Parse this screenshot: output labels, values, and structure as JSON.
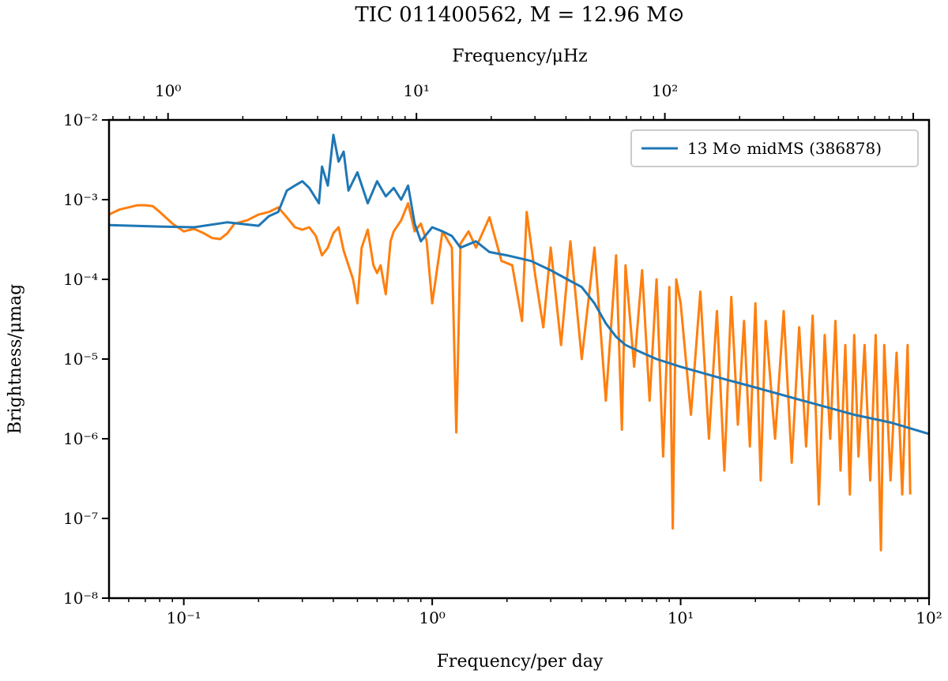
{
  "chart_data": {
    "type": "line",
    "title": "TIC 011400562, M = 12.96 M⊙",
    "xlabel": "Frequency/per day",
    "xlabel_top": "Frequency/μHz",
    "ylabel": "Brightness/μmag",
    "xscale": "log",
    "yscale": "log",
    "xlim": [
      0.05,
      100
    ],
    "ylim": [
      1e-08,
      0.01
    ],
    "top_xlim": [
      0.5787,
      1157.4
    ],
    "x_ticks": [
      {
        "value": 0.1,
        "label": "10⁻¹"
      },
      {
        "value": 1,
        "label": "10⁰"
      },
      {
        "value": 10,
        "label": "10¹"
      },
      {
        "value": 100,
        "label": "10²"
      }
    ],
    "top_x_ticks": [
      {
        "value": 1,
        "label": "10⁰"
      },
      {
        "value": 10,
        "label": "10¹"
      },
      {
        "value": 100,
        "label": "10²"
      }
    ],
    "y_ticks": [
      {
        "value": 1e-08,
        "label": "10⁻⁸"
      },
      {
        "value": 1e-07,
        "label": "10⁻⁷"
      },
      {
        "value": 1e-06,
        "label": "10⁻⁶"
      },
      {
        "value": 1e-05,
        "label": "10⁻⁵"
      },
      {
        "value": 0.0001,
        "label": "10⁻⁴"
      },
      {
        "value": 0.001,
        "label": "10⁻³"
      },
      {
        "value": 0.01,
        "label": "10⁻²"
      }
    ],
    "legend_position": "top-right",
    "series": [
      {
        "name": "13 M⊙ midMS (386878)",
        "color": "#1f77b4",
        "x": [
          0.05,
          0.08,
          0.11,
          0.15,
          0.2,
          0.22,
          0.24,
          0.26,
          0.28,
          0.3,
          0.32,
          0.35,
          0.36,
          0.38,
          0.4,
          0.42,
          0.44,
          0.46,
          0.5,
          0.55,
          0.6,
          0.65,
          0.7,
          0.75,
          0.8,
          0.85,
          0.9,
          1.0,
          1.1,
          1.2,
          1.3,
          1.5,
          1.7,
          2.0,
          2.5,
          3.0,
          3.5,
          4.0,
          4.5,
          5.0,
          5.5,
          6.0,
          7.0,
          8.0,
          10.0,
          15.0,
          20.0,
          30.0,
          50.0,
          70.0,
          100.0
        ],
        "y": [
          0.00048,
          0.00046,
          0.00045,
          0.00052,
          0.00047,
          0.00062,
          0.0007,
          0.0013,
          0.0015,
          0.0017,
          0.0014,
          0.0009,
          0.0026,
          0.0015,
          0.0065,
          0.003,
          0.004,
          0.0013,
          0.0022,
          0.0009,
          0.0017,
          0.0011,
          0.0014,
          0.001,
          0.0015,
          0.0005,
          0.0003,
          0.00045,
          0.0004,
          0.00035,
          0.00025,
          0.0003,
          0.00022,
          0.0002,
          0.00017,
          0.00013,
          0.0001,
          8e-05,
          5e-05,
          2.8e-05,
          1.9e-05,
          1.5e-05,
          1.2e-05,
          1e-05,
          8e-06,
          5.6e-06,
          4.4e-06,
          3.1e-06,
          2e-06,
          1.6e-06,
          1.15e-06
        ]
      },
      {
        "name": "",
        "color": "#ff7f0e",
        "x": [
          0.05,
          0.055,
          0.06,
          0.065,
          0.07,
          0.075,
          0.08,
          0.09,
          0.1,
          0.11,
          0.12,
          0.13,
          0.14,
          0.15,
          0.16,
          0.18,
          0.2,
          0.22,
          0.24,
          0.26,
          0.28,
          0.3,
          0.32,
          0.34,
          0.36,
          0.38,
          0.4,
          0.42,
          0.44,
          0.46,
          0.48,
          0.5,
          0.52,
          0.55,
          0.58,
          0.6,
          0.62,
          0.65,
          0.68,
          0.7,
          0.75,
          0.8,
          0.85,
          0.9,
          0.95,
          1.0,
          1.1,
          1.2,
          1.25,
          1.3,
          1.4,
          1.5,
          1.7,
          1.9,
          2.1,
          2.3,
          2.4,
          2.6,
          2.8,
          3.0,
          3.3,
          3.6,
          4.0,
          4.5,
          5.0,
          5.5,
          5.8,
          6.0,
          6.5,
          7.0,
          7.5,
          8.0,
          8.5,
          9.0,
          9.3,
          9.6,
          10.0,
          11.0,
          12.0,
          13.0,
          14.0,
          15.0,
          16.0,
          17.0,
          18.0,
          19.0,
          20.0,
          21.0,
          22.0,
          24.0,
          26.0,
          28.0,
          30.0,
          32.0,
          34.0,
          36.0,
          38.0,
          40.0,
          42.0,
          44.0,
          46.0,
          48.0,
          50.0,
          52.0,
          55.0,
          58.0,
          61.0,
          64.0,
          66.0,
          70.0,
          74.0,
          78.0,
          82.0,
          84.0
        ],
        "y": [
          0.00065,
          0.00075,
          0.0008,
          0.00085,
          0.00085,
          0.00083,
          0.0007,
          0.0005,
          0.0004,
          0.00043,
          0.00038,
          0.00033,
          0.00032,
          0.00038,
          0.0005,
          0.00055,
          0.00065,
          0.0007,
          0.0008,
          0.0006,
          0.00045,
          0.00042,
          0.00045,
          0.00035,
          0.0002,
          0.00025,
          0.00038,
          0.00045,
          0.00023,
          0.00015,
          0.0001,
          5e-05,
          0.00025,
          0.00042,
          0.00015,
          0.00012,
          0.00015,
          6.5e-05,
          0.0003,
          0.0004,
          0.00055,
          0.0009,
          0.0004,
          0.0005,
          0.0003,
          5e-05,
          0.0004,
          0.00025,
          1.2e-06,
          0.00028,
          0.0004,
          0.00025,
          0.0006,
          0.00017,
          0.00015,
          3e-05,
          0.0007,
          0.00011,
          2.5e-05,
          0.00025,
          1.5e-05,
          0.0003,
          1e-05,
          0.00025,
          3e-06,
          0.0002,
          1.3e-06,
          0.00015,
          8e-06,
          0.00013,
          3e-06,
          0.0001,
          6e-07,
          8e-05,
          7.5e-08,
          0.0001,
          5e-05,
          2e-06,
          7e-05,
          1e-06,
          4e-05,
          4e-07,
          6e-05,
          1.5e-06,
          3e-05,
          8e-07,
          5e-05,
          3e-07,
          3e-05,
          1e-06,
          4e-05,
          5e-07,
          2.5e-05,
          8e-07,
          3.5e-05,
          1.5e-07,
          2e-05,
          1e-06,
          3e-05,
          4e-07,
          1.5e-05,
          2e-07,
          2e-05,
          6e-07,
          1.5e-05,
          3e-07,
          2e-05,
          4e-08,
          1.5e-05,
          3e-07,
          1.2e-05,
          2e-07,
          1.5e-05,
          2e-07
        ]
      }
    ]
  }
}
